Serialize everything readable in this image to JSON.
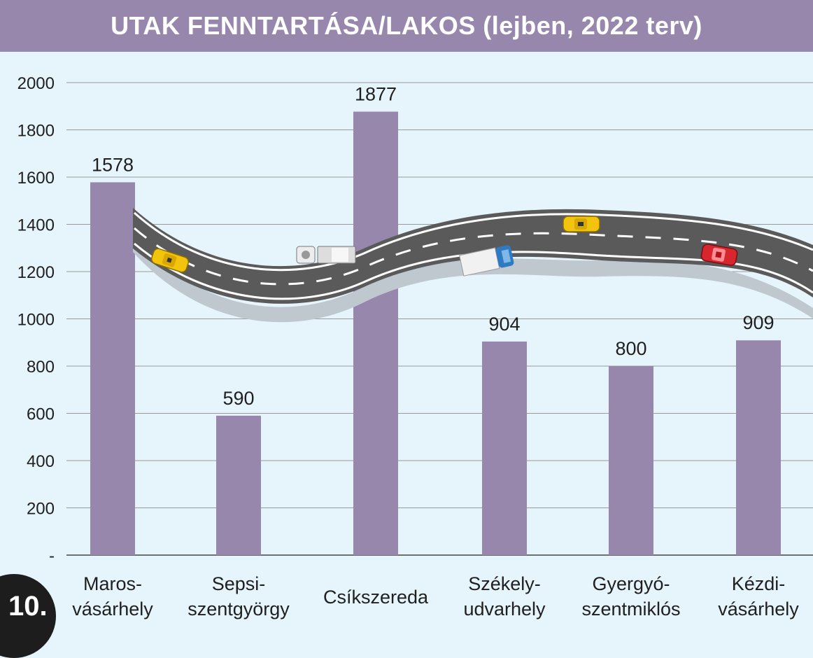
{
  "title": "UTAK FENNTARTÁSA/LAKOS (lejben, 2022 terv)",
  "badge": "10.",
  "colors": {
    "bar": "#9787ad",
    "title_bg": "#9787ad",
    "background": "#e6f4fc",
    "grid": "#9a9a9a",
    "road": "#5a5a5a",
    "road_shadow": "#bfc7cf"
  },
  "chart_data": {
    "type": "bar",
    "title": "UTAK FENNTARTÁSA/LAKOS (lejben, 2022 terv)",
    "categories": [
      [
        "Maros-",
        "vásárhely"
      ],
      [
        "Sepsi-",
        "szentgyörgy"
      ],
      [
        "Csíkszereda"
      ],
      [
        "Székely-",
        "udvarhely"
      ],
      [
        "Gyergyó-",
        "szentmiklós"
      ],
      [
        "Kézdi-",
        "vásárhely"
      ]
    ],
    "values": [
      1578,
      590,
      1877,
      904,
      800,
      909
    ],
    "value_labels": [
      "1578",
      "590",
      "1877",
      "904",
      "800",
      "909"
    ],
    "yticks": [
      0,
      200,
      400,
      600,
      800,
      1000,
      1200,
      1400,
      1600,
      1800,
      2000
    ],
    "ytick_labels": [
      "-",
      "200",
      "400",
      "600",
      "800",
      "1000",
      "1200",
      "1400",
      "1600",
      "1800",
      "2000"
    ],
    "ylim": [
      0,
      2000
    ],
    "grid": true,
    "legend": "none",
    "decoration": "road-with-cars"
  }
}
